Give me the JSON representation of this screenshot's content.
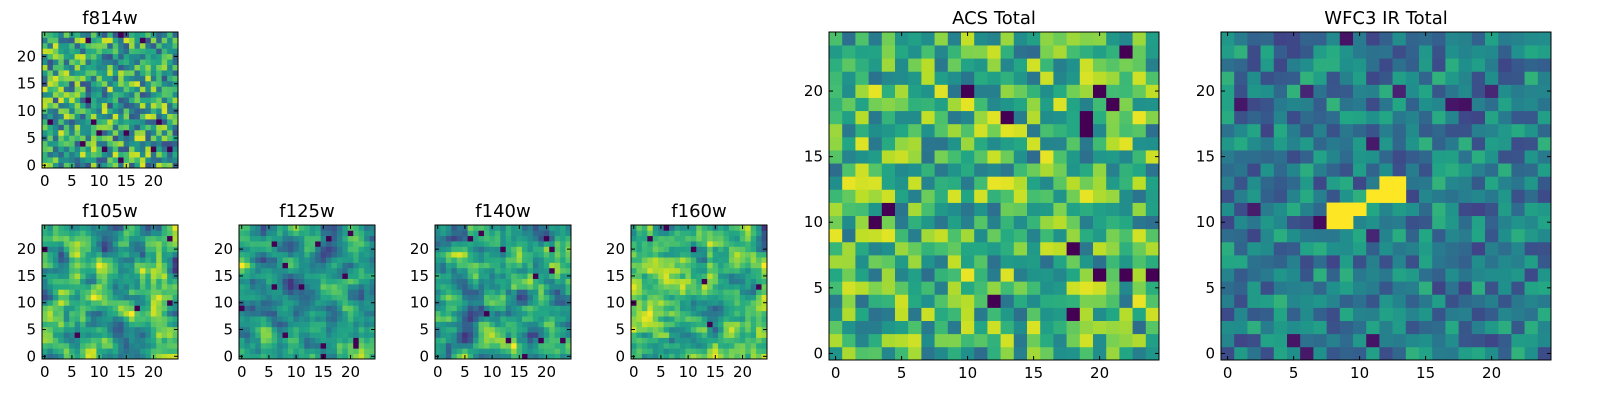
{
  "chart_data": [
    {
      "type": "heatmap",
      "title": "f814w",
      "grid_size": 25,
      "xlim": [
        0,
        24
      ],
      "ylim": [
        0,
        24
      ],
      "xticks": [
        0,
        5,
        10,
        15,
        20
      ],
      "yticks": [
        0,
        5,
        10,
        15,
        20
      ],
      "colormap": "viridis",
      "grid": false,
      "seed": 11,
      "smooth": 0,
      "hot_spot": null
    },
    {
      "type": "heatmap",
      "title": "f105w",
      "grid_size": 25,
      "xlim": [
        0,
        24
      ],
      "ylim": [
        0,
        24
      ],
      "xticks": [
        0,
        5,
        10,
        15,
        20
      ],
      "yticks": [
        0,
        5,
        10,
        15,
        20
      ],
      "colormap": "viridis",
      "grid": false,
      "seed": 23,
      "smooth": 1,
      "hot_spot": null
    },
    {
      "type": "heatmap",
      "title": "f125w",
      "grid_size": 25,
      "xlim": [
        0,
        24
      ],
      "ylim": [
        0,
        24
      ],
      "xticks": [
        0,
        5,
        10,
        15,
        20
      ],
      "yticks": [
        0,
        5,
        10,
        15,
        20
      ],
      "colormap": "viridis",
      "grid": false,
      "seed": 37,
      "smooth": 1,
      "hot_spot": null
    },
    {
      "type": "heatmap",
      "title": "f140w",
      "grid_size": 25,
      "xlim": [
        0,
        24
      ],
      "ylim": [
        0,
        24
      ],
      "xticks": [
        0,
        5,
        10,
        15,
        20
      ],
      "yticks": [
        0,
        5,
        10,
        15,
        20
      ],
      "colormap": "viridis",
      "grid": false,
      "seed": 41,
      "smooth": 1,
      "hot_spot": null
    },
    {
      "type": "heatmap",
      "title": "f160w",
      "grid_size": 25,
      "xlim": [
        0,
        24
      ],
      "ylim": [
        0,
        24
      ],
      "xticks": [
        0,
        5,
        10,
        15,
        20
      ],
      "yticks": [
        0,
        5,
        10,
        15,
        20
      ],
      "colormap": "viridis",
      "grid": false,
      "seed": 53,
      "smooth": 1,
      "hot_spot": null
    },
    {
      "type": "heatmap",
      "title": "ACS Total",
      "grid_size": 25,
      "xlim": [
        0,
        24
      ],
      "ylim": [
        0,
        24
      ],
      "xticks": [
        0,
        5,
        10,
        15,
        20
      ],
      "yticks": [
        0,
        5,
        10,
        15,
        20
      ],
      "colormap": "viridis",
      "grid": false,
      "seed": 67,
      "smooth": 0,
      "hot_spot": null
    },
    {
      "type": "heatmap",
      "title": "WFC3 IR Total",
      "grid_size": 25,
      "xlim": [
        0,
        24
      ],
      "ylim": [
        0,
        24
      ],
      "xticks": [
        0,
        5,
        10,
        15,
        20
      ],
      "yticks": [
        0,
        5,
        10,
        15,
        20
      ],
      "colormap": "viridis",
      "grid": false,
      "seed": 71,
      "smooth": 0,
      "hot_spot": {
        "cells": [
          [
            8,
            10
          ],
          [
            9,
            10
          ],
          [
            8,
            11
          ],
          [
            9,
            11
          ],
          [
            12,
            12
          ],
          [
            13,
            12
          ],
          [
            12,
            13
          ],
          [
            13,
            13
          ],
          [
            10,
            11
          ],
          [
            11,
            12
          ]
        ]
      }
    }
  ]
}
